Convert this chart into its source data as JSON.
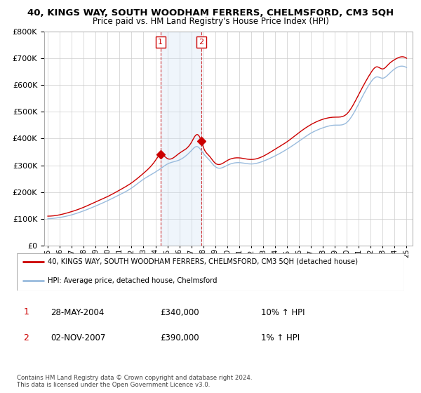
{
  "title": "40, KINGS WAY, SOUTH WOODHAM FERRERS, CHELMSFORD, CM3 5QH",
  "subtitle": "Price paid vs. HM Land Registry's House Price Index (HPI)",
  "legend_line1": "40, KINGS WAY, SOUTH WOODHAM FERRERS, CHELMSFORD, CM3 5QH (detached house)",
  "legend_line2": "HPI: Average price, detached house, Chelmsford",
  "sale1_date": "28-MAY-2004",
  "sale1_price": "£340,000",
  "sale1_hpi": "10% ↑ HPI",
  "sale2_date": "02-NOV-2007",
  "sale2_price": "£390,000",
  "sale2_hpi": "1% ↑ HPI",
  "footnote": "Contains HM Land Registry data © Crown copyright and database right 2024.\nThis data is licensed under the Open Government Licence v3.0.",
  "red_color": "#cc0000",
  "blue_color": "#99bbdd",
  "highlight_color": "#ddeeff",
  "sale1_x": 2004.42,
  "sale2_x": 2007.84,
  "sale1_y": 340000,
  "sale2_y": 390000,
  "ylim": [
    0,
    800000
  ],
  "xlim_start": 1994.7,
  "xlim_end": 2025.5
}
